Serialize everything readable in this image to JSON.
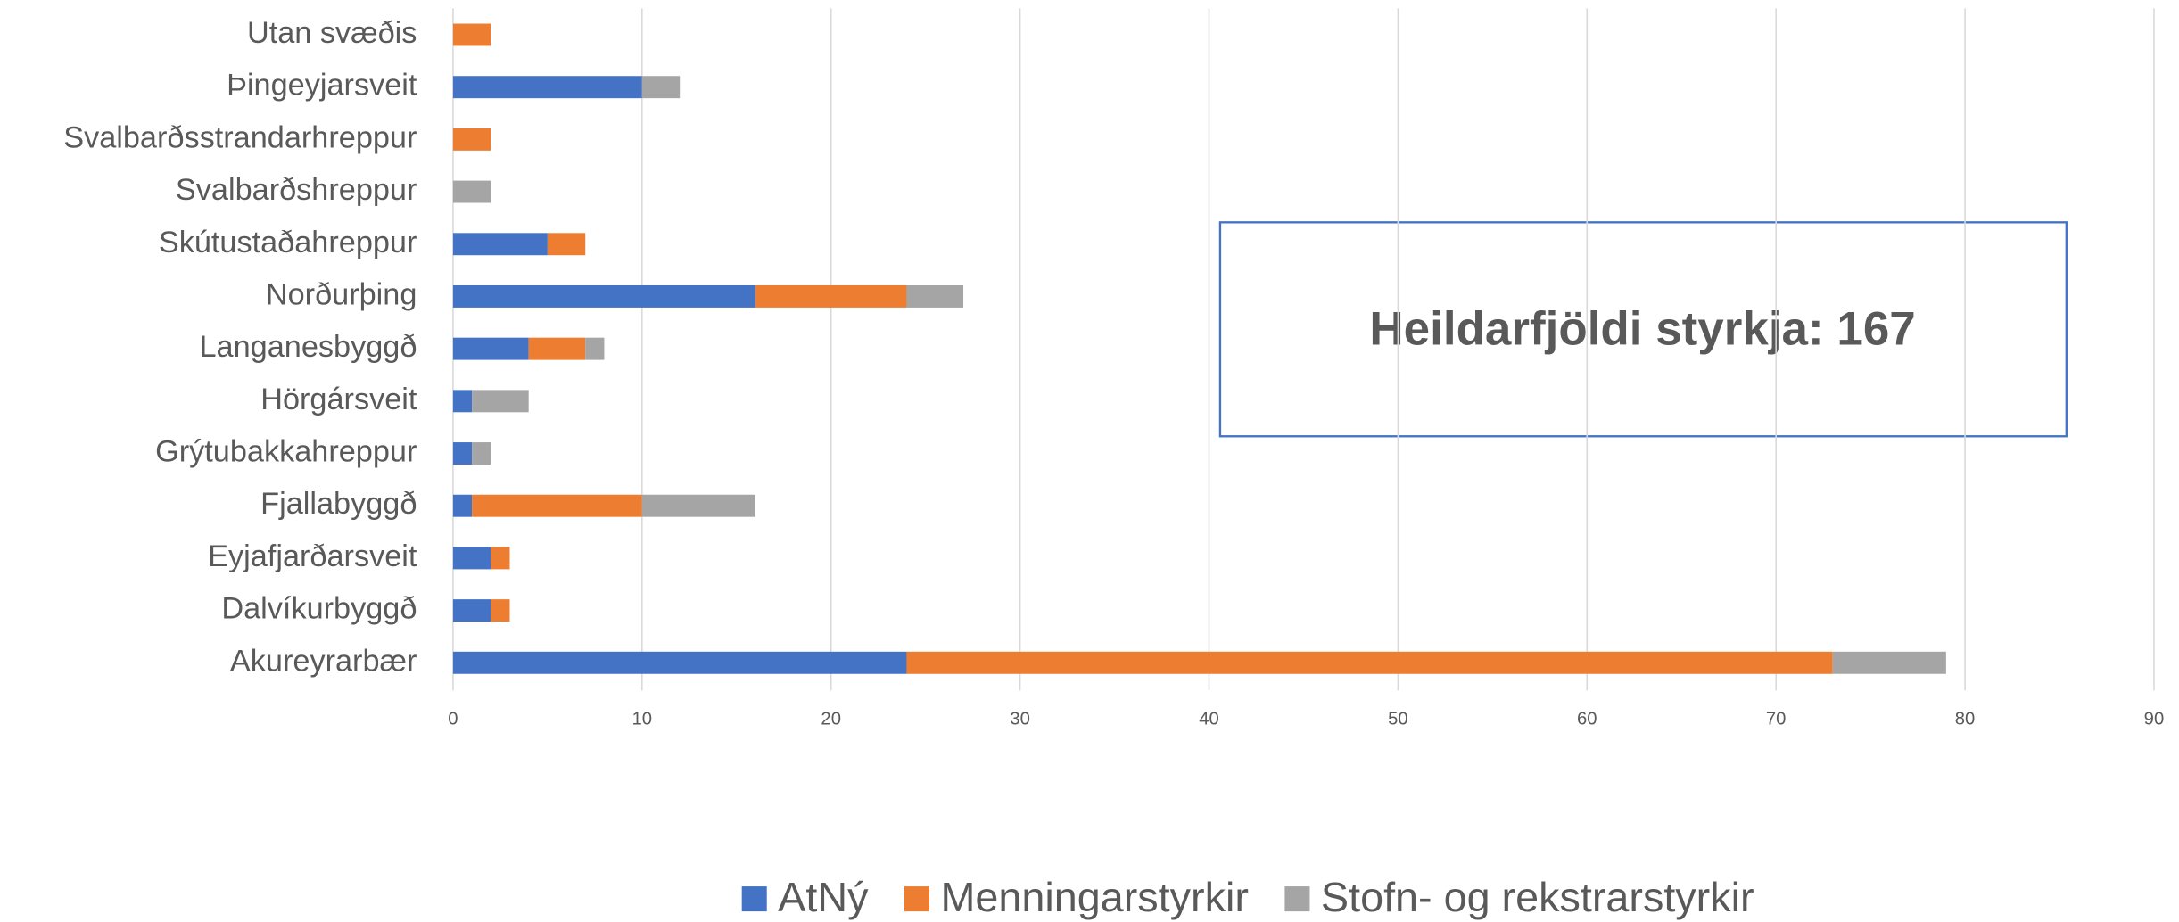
{
  "chart_data": {
    "type": "stacked-bar-horizontal",
    "categories": [
      "Utan svæðis",
      "Þingeyjarsveit",
      "Svalbarðsstrandarhreppur",
      "Svalbarðshreppur",
      "Skútustaðahreppur",
      "Norðurþing",
      "Langanesbyggð",
      "Hörgársveit",
      "Grýtubakkahreppur",
      "Fjallabyggð",
      "Eyjafjarðarsveit",
      "Dalvíkurbyggð",
      "Akureyrarbær"
    ],
    "series": [
      {
        "name": "AtNý",
        "color": "#4472c4",
        "values": [
          0,
          10,
          0,
          0,
          5,
          16,
          4,
          1,
          1,
          1,
          2,
          2,
          24
        ]
      },
      {
        "name": "Menningarstyrkir",
        "color": "#ed7d31",
        "values": [
          2,
          0,
          2,
          0,
          2,
          8,
          3,
          0,
          0,
          9,
          1,
          1,
          49
        ]
      },
      {
        "name": "Stofn- og rekstrarstyrkir",
        "color": "#a5a5a5",
        "values": [
          0,
          2,
          0,
          2,
          0,
          3,
          1,
          3,
          1,
          6,
          0,
          0,
          6
        ]
      }
    ],
    "xlim": [
      0,
      90
    ],
    "xticks": [
      0,
      10,
      20,
      30,
      40,
      50,
      60,
      70,
      80,
      90
    ],
    "grid": true,
    "legend": "bottom",
    "annotation": "Heildarfjöldi styrkja: 167"
  }
}
